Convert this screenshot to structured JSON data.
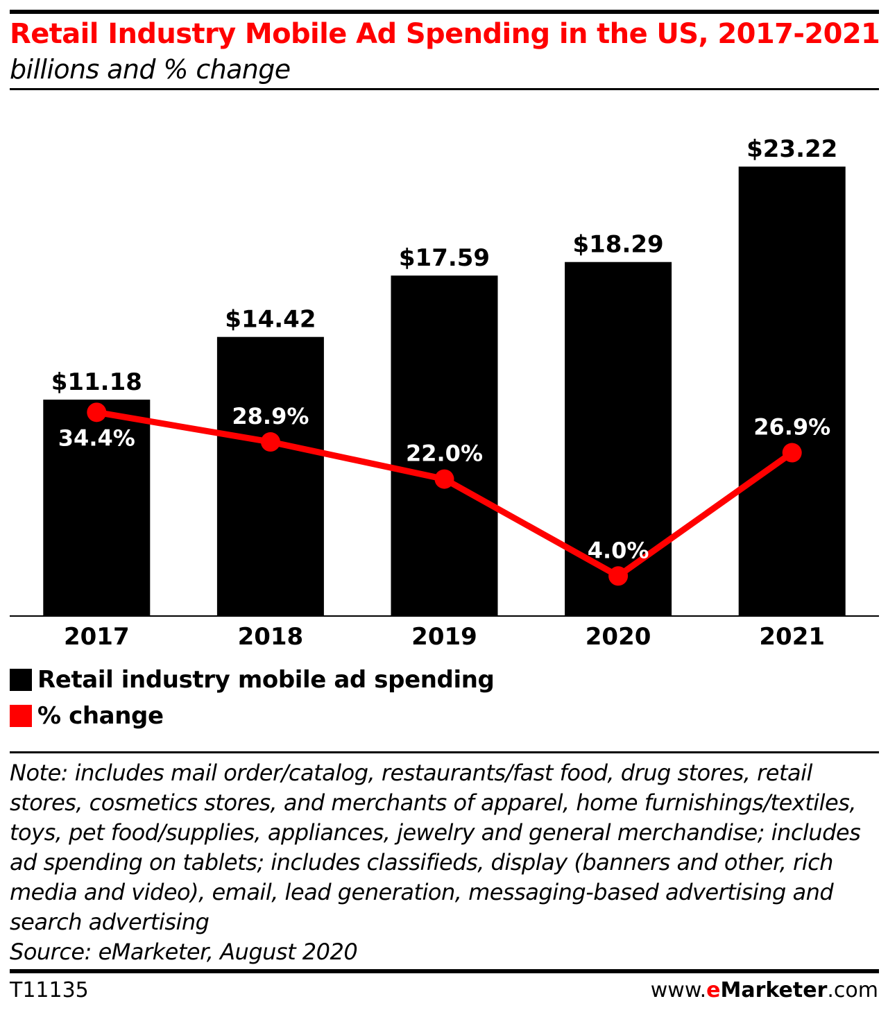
{
  "header": {
    "title": "Retail Industry Mobile Ad Spending in the US, 2017-2021",
    "subtitle": "billions and % change"
  },
  "colors": {
    "bar": "#000000",
    "line": "#ff0000",
    "title": "#ff0000"
  },
  "chart_data": {
    "type": "bar",
    "categories": [
      "2017",
      "2018",
      "2019",
      "2020",
      "2021"
    ],
    "series": [
      {
        "name": "Retail industry mobile ad spending",
        "type": "bar",
        "values": [
          11.18,
          14.42,
          17.59,
          18.29,
          23.22
        ],
        "labels": [
          "$11.18",
          "$14.42",
          "$17.59",
          "$18.29",
          "$23.22"
        ]
      },
      {
        "name": "% change",
        "type": "line",
        "values": [
          34.4,
          28.9,
          22.0,
          4.0,
          26.9
        ],
        "labels": [
          "34.4%",
          "28.9%",
          "22.0%",
          "4.0%",
          "26.9%"
        ]
      }
    ],
    "title": "Retail Industry Mobile Ad Spending in the US, 2017-2021",
    "subtitle": "billions and % change",
    "grid": false,
    "legend_position": "bottom-left"
  },
  "legend": {
    "items": [
      {
        "label": "Retail industry mobile ad spending",
        "color": "#000000"
      },
      {
        "label": "% change",
        "color": "#ff0000"
      }
    ]
  },
  "footer": {
    "note": "Note: includes mail order/catalog, restaurants/fast food, drug stores, retail stores, cosmetics stores, and merchants of apparel, home furnishings/textiles, toys, pet food/supplies, appliances, jewelry and general merchandise; includes ad spending on tablets; includes classifieds, display (banners and other, rich media and video), email, lead generation, messaging-based advertising and search advertising",
    "source": "Source: eMarketer, August 2020",
    "chart_id": "T11135",
    "brand_prefix": "www.",
    "brand_e": "e",
    "brand_name": "Marketer",
    "brand_suffix": ".com"
  }
}
